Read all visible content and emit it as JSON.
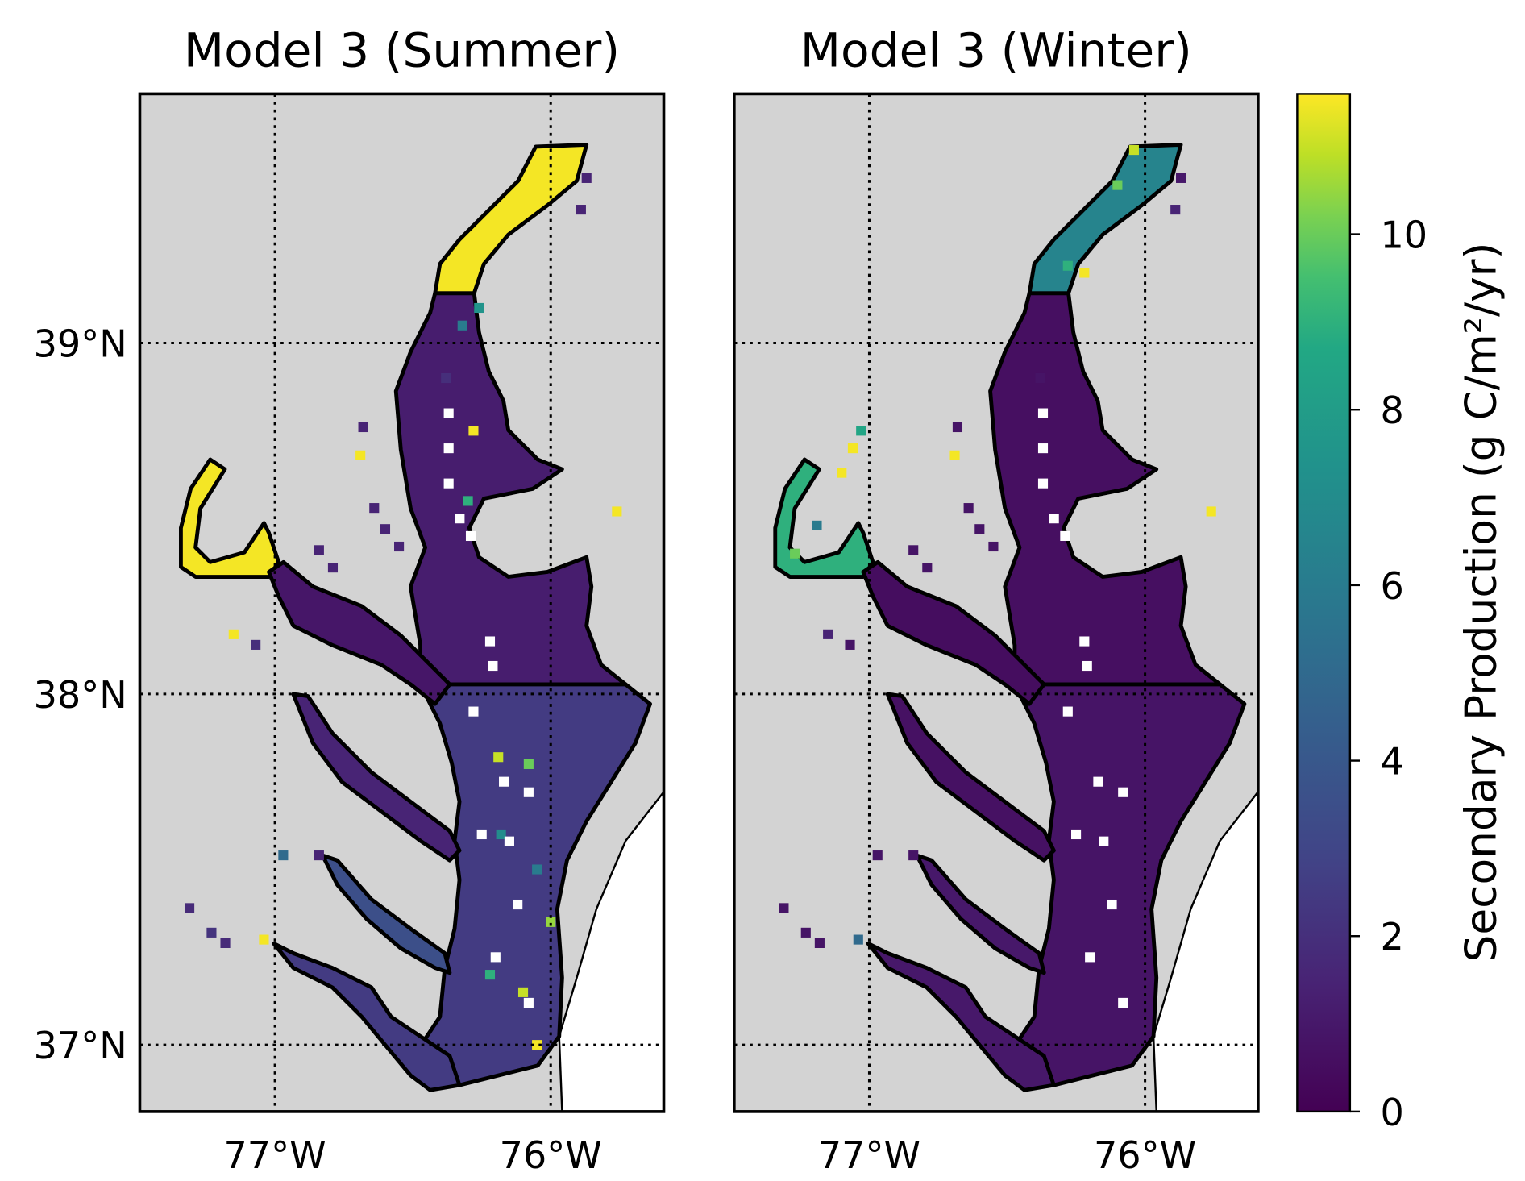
{
  "chart_data": {
    "type": "heatmap",
    "panels": [
      {
        "title": "Model 3 (Summer)",
        "regions": {
          "upper-bay": 11.5,
          "mid-bay": 1.2,
          "lower-bay": 2.5,
          "potomac-upper": 11.5,
          "potomac": 0.9,
          "rappahannock": 1.5,
          "york": 3.5,
          "james": 2.5
        },
        "cells": [
          [
            -75.76,
            38.52,
            11.5
          ],
          [
            -76.68,
            38.76,
            1.5
          ],
          [
            -76.69,
            38.68,
            11.5
          ],
          [
            -77.15,
            38.17,
            11.5
          ],
          [
            -77.07,
            38.14,
            2.0
          ],
          [
            -77.31,
            37.39,
            1.8
          ],
          [
            -77.23,
            37.32,
            2.2
          ],
          [
            -77.18,
            37.29,
            1.8
          ],
          [
            -76.97,
            37.54,
            5.0
          ],
          [
            -76.84,
            37.54,
            1.5
          ],
          [
            -77.04,
            37.3,
            11.5
          ],
          [
            -76.38,
            38.9,
            2.0
          ],
          [
            -75.89,
            39.38,
            1.5
          ],
          [
            -75.87,
            39.47,
            1.5
          ],
          [
            -76.64,
            38.53,
            1.5
          ],
          [
            -76.6,
            38.47,
            1.5
          ],
          [
            -76.55,
            38.42,
            1.5
          ],
          [
            -76.84,
            38.41,
            1.5
          ],
          [
            -76.79,
            38.36,
            1.5
          ],
          [
            -76.19,
            37.82,
            11.0
          ],
          [
            -76.08,
            37.8,
            10.0
          ],
          [
            -76.1,
            37.15,
            11.0
          ],
          [
            -76.22,
            37.2,
            9.0
          ],
          [
            -76.0,
            37.35,
            10.5
          ],
          [
            -76.05,
            37.0,
            11.5
          ],
          [
            -76.18,
            37.6,
            7.0
          ],
          [
            -76.05,
            37.5,
            6.0
          ],
          [
            -76.3,
            38.55,
            9.0
          ],
          [
            -76.28,
            38.75,
            11.5
          ],
          [
            -76.32,
            39.05,
            6.0
          ],
          [
            -76.26,
            39.1,
            7.5
          ],
          [
            -76.37,
            38.8,
            null
          ],
          [
            -76.37,
            38.7,
            null
          ],
          [
            -76.37,
            38.6,
            null
          ],
          [
            -76.33,
            38.5,
            null
          ],
          [
            -76.29,
            38.45,
            null
          ],
          [
            -76.22,
            38.15,
            null
          ],
          [
            -76.21,
            38.08,
            null
          ],
          [
            -76.17,
            37.75,
            null
          ],
          [
            -76.08,
            37.72,
            null
          ],
          [
            -76.25,
            37.6,
            null
          ],
          [
            -76.15,
            37.58,
            null
          ],
          [
            -76.12,
            37.4,
            null
          ],
          [
            -76.2,
            37.25,
            null
          ],
          [
            -76.08,
            37.12,
            null
          ],
          [
            -76.28,
            37.95,
            null
          ]
        ]
      },
      {
        "title": "Model 3 (Winter)",
        "regions": {
          "upper-bay": 6.5,
          "mid-bay": 0.6,
          "lower-bay": 0.8,
          "potomac-upper": 9.0,
          "potomac": 0.5,
          "rappahannock": 0.7,
          "york": 1.0,
          "james": 1.0
        },
        "cells": [
          [
            -75.76,
            38.52,
            11.5
          ],
          [
            -76.68,
            38.76,
            0.8
          ],
          [
            -76.69,
            38.68,
            11.5
          ],
          [
            -77.15,
            38.17,
            1.5
          ],
          [
            -77.07,
            38.14,
            0.8
          ],
          [
            -77.31,
            37.39,
            0.8
          ],
          [
            -77.23,
            37.32,
            0.8
          ],
          [
            -77.18,
            37.29,
            0.8
          ],
          [
            -76.97,
            37.54,
            0.8
          ],
          [
            -76.84,
            37.54,
            0.8
          ],
          [
            -77.04,
            37.3,
            5.0
          ],
          [
            -76.38,
            38.9,
            0.8
          ],
          [
            -75.89,
            39.38,
            1.5
          ],
          [
            -75.87,
            39.47,
            1.0
          ],
          [
            -76.64,
            38.53,
            0.8
          ],
          [
            -76.6,
            38.47,
            0.8
          ],
          [
            -76.55,
            38.42,
            0.8
          ],
          [
            -76.84,
            38.41,
            0.8
          ],
          [
            -76.79,
            38.36,
            0.8
          ],
          [
            -76.04,
            39.55,
            11.0
          ],
          [
            -76.1,
            39.45,
            10.0
          ],
          [
            -76.28,
            39.22,
            9.0
          ],
          [
            -76.22,
            39.2,
            11.5
          ],
          [
            -77.03,
            38.75,
            8.5
          ],
          [
            -77.06,
            38.7,
            11.5
          ],
          [
            -77.1,
            38.63,
            11.5
          ],
          [
            -77.19,
            38.48,
            6.0
          ],
          [
            -77.27,
            38.4,
            10.0
          ],
          [
            -76.37,
            38.8,
            null
          ],
          [
            -76.37,
            38.7,
            null
          ],
          [
            -76.37,
            38.6,
            null
          ],
          [
            -76.33,
            38.5,
            null
          ],
          [
            -76.29,
            38.45,
            null
          ],
          [
            -76.22,
            38.15,
            null
          ],
          [
            -76.21,
            38.08,
            null
          ],
          [
            -76.17,
            37.75,
            null
          ],
          [
            -76.08,
            37.72,
            null
          ],
          [
            -76.25,
            37.6,
            null
          ],
          [
            -76.15,
            37.58,
            null
          ],
          [
            -76.12,
            37.4,
            null
          ],
          [
            -76.2,
            37.25,
            null
          ],
          [
            -76.08,
            37.12,
            null
          ],
          [
            -76.28,
            37.95,
            null
          ]
        ]
      }
    ],
    "xticks": [
      {
        "lon": -77,
        "label": "77°W"
      },
      {
        "lon": -76,
        "label": "76°W"
      }
    ],
    "yticks": [
      {
        "lat": 39,
        "label": "39°N"
      },
      {
        "lat": 38,
        "label": "38°N"
      },
      {
        "lat": 37,
        "label": "37°N"
      }
    ],
    "lon_range": [
      -77.49,
      -75.59
    ],
    "lat_range": [
      36.81,
      39.71
    ],
    "grid": true,
    "colorbar": {
      "label": "Secondary Production (g C/m²/yr)",
      "range": [
        0,
        11.6
      ],
      "ticks": [
        0,
        2,
        4,
        6,
        8,
        10
      ],
      "tick_labels": [
        "0",
        "2",
        "4",
        "6",
        "8",
        "10"
      ],
      "colormap": "viridis",
      "placement": "right"
    },
    "colors": {
      "land": "#d3d3d3",
      "ocean": "#ffffff",
      "missing": "#ffffff",
      "coast": "#000000"
    }
  }
}
